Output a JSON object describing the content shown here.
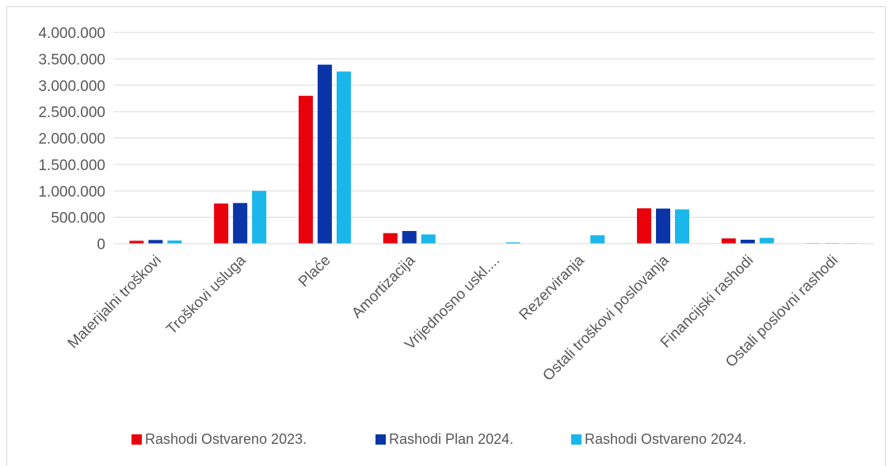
{
  "chart_data": {
    "type": "bar",
    "title": "",
    "xlabel": "",
    "ylabel": "",
    "categories": [
      "Materijalni troškovi",
      "Troškovi usluga",
      "Plaće",
      "Amortizacija",
      "Vrijednosno uskl....",
      "Rezerviranja",
      "Ostali troškovi poslovanja",
      "Financijski rashodi",
      "Ostali poslovni rashodi"
    ],
    "series": [
      {
        "name": "Rashodi Ostvareno 2023.",
        "color": "#e8000b",
        "values": [
          55000,
          760000,
          2800000,
          200000,
          0,
          0,
          670000,
          100000,
          10000
        ]
      },
      {
        "name": "Rashodi Plan 2024.",
        "color": "#0a35a8",
        "values": [
          70000,
          770000,
          3390000,
          240000,
          0,
          0,
          665000,
          75000,
          10000
        ]
      },
      {
        "name": "Rashodi Ostvareno 2024.",
        "color": "#1ab7ea",
        "values": [
          60000,
          1000000,
          3260000,
          175000,
          25000,
          160000,
          650000,
          110000,
          10000
        ]
      }
    ],
    "ylim": [
      0,
      4000000
    ],
    "yticks": [
      0,
      500000,
      1000000,
      1500000,
      2000000,
      2500000,
      3000000,
      3500000,
      4000000
    ],
    "ytick_labels": [
      "0",
      "500.000",
      "1.000.000",
      "1.500.000",
      "2.000.000",
      "2.500.000",
      "3.000.000",
      "3.500.000",
      "4.000.000"
    ],
    "grid": true,
    "legend_position": "bottom",
    "colors": {
      "gridline": "#d9d9d9",
      "axis": "#d9d9d9",
      "text": "#595959"
    }
  }
}
